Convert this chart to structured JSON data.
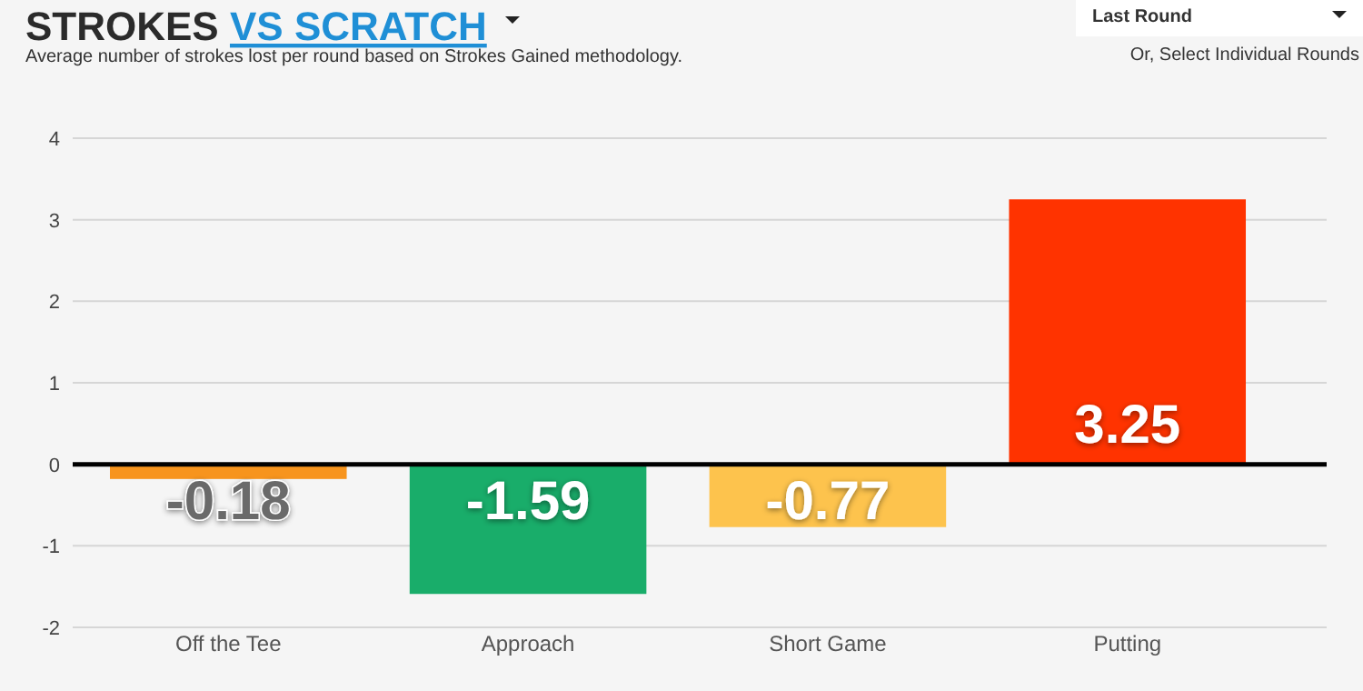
{
  "chart_data": {
    "type": "bar",
    "title": "STROKES VS SCRATCH",
    "subtitle": "Average number of strokes lost per round based on Strokes Gained methodology.",
    "annotations": [
      "Last Round",
      "Or, Select Individual Rounds"
    ],
    "categories": [
      "Off the Tee",
      "Approach",
      "Short Game",
      "Putting"
    ],
    "values": [
      -0.18,
      -1.59,
      -0.77,
      3.25
    ],
    "colors": [
      "#f7941d",
      "#19ad6a",
      "#fdc34d",
      "#ff3300"
    ],
    "ylim": [
      -2,
      4
    ],
    "yticks": [
      -2,
      -1,
      0,
      1,
      2,
      3,
      4
    ],
    "grid": "y",
    "data_labels": true
  }
}
